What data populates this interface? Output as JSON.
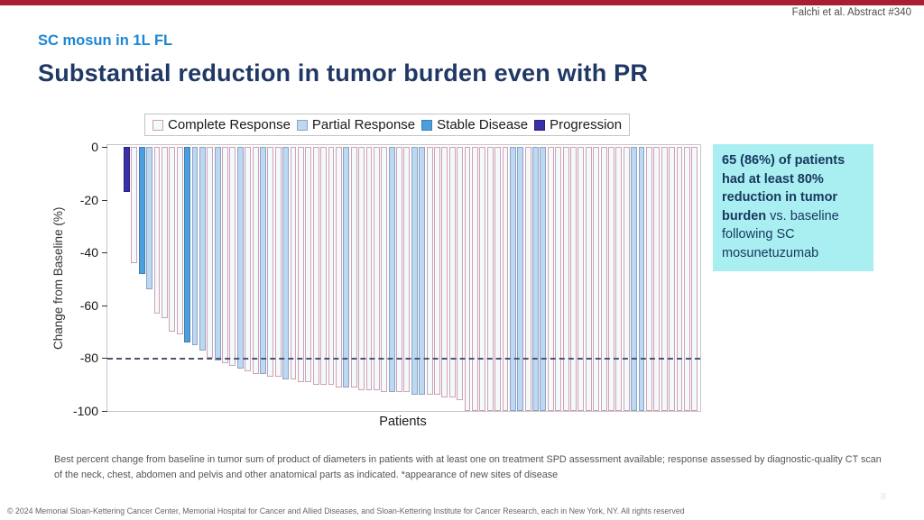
{
  "slide": {
    "attribution": "Falchi et al. Abstract #340",
    "kicker": "SC mosun in 1L FL",
    "title": "Substantial reduction in tumor burden even with PR",
    "accent_bar_color": "#A81E33",
    "page_number": "8"
  },
  "chart_data": {
    "type": "bar",
    "subtype": "waterfall",
    "title": "",
    "xlabel": "Patients",
    "ylabel": "Change from Baseline (%)",
    "ylim": [
      -100,
      0
    ],
    "yticks": [
      0,
      -20,
      -40,
      -60,
      -80,
      -100
    ],
    "reference_line": -80,
    "grid": false,
    "legend_position": "top",
    "legend": [
      {
        "key": "CR",
        "label": "Complete Response",
        "fill": "#F2FAFC",
        "border": "#D2A0B5"
      },
      {
        "key": "PR",
        "label": "Partial Response",
        "fill": "#BCD8F2",
        "border": "#8FA3C2"
      },
      {
        "key": "SD",
        "label": "Stable Disease",
        "fill": "#4D9EDC",
        "border": "#3F7FB5"
      },
      {
        "key": "PD",
        "label": "Progression",
        "fill": "#3B2FA9",
        "border": "#2A2080"
      }
    ],
    "values": [
      -17,
      -44,
      -48,
      -54,
      -63,
      -65,
      -70,
      -71,
      -74,
      -75,
      -77,
      -80,
      -81,
      -82,
      -83,
      -84,
      -85,
      -86,
      -86,
      -87,
      -87,
      -88,
      -88,
      -89,
      -89,
      -90,
      -90,
      -90,
      -91,
      -91,
      -91,
      -92,
      -92,
      -92,
      -93,
      -93,
      -93,
      -93,
      -94,
      -94,
      -94,
      -94,
      -95,
      -95,
      -96,
      -100,
      -100,
      -100,
      -100,
      -100,
      -100,
      -100,
      -100,
      -100,
      -100,
      -100,
      -100,
      -100,
      -100,
      -100,
      -100,
      -100,
      -100,
      -100,
      -100,
      -100,
      -100,
      -100,
      -100,
      -100,
      -100,
      -100,
      -100,
      -100,
      -100,
      -100
    ],
    "responses": [
      "PD",
      "CR",
      "SD",
      "PR",
      "CR",
      "CR",
      "CR",
      "CR",
      "SD",
      "PR",
      "PR",
      "CR",
      "PR",
      "CR",
      "CR",
      "PR",
      "CR",
      "CR",
      "PR",
      "CR",
      "CR",
      "PR",
      "CR",
      "CR",
      "CR",
      "CR",
      "CR",
      "CR",
      "CR",
      "PR",
      "CR",
      "CR",
      "CR",
      "CR",
      "CR",
      "PR",
      "CR",
      "CR",
      "PR",
      "PR",
      "CR",
      "CR",
      "CR",
      "CR",
      "CR",
      "CR",
      "CR",
      "CR",
      "CR",
      "CR",
      "CR",
      "PR",
      "PR",
      "CR",
      "PR",
      "PR",
      "CR",
      "CR",
      "CR",
      "CR",
      "CR",
      "CR",
      "CR",
      "CR",
      "CR",
      "CR",
      "CR",
      "PR",
      "PR",
      "CR",
      "CR",
      "CR",
      "CR",
      "CR",
      "CR",
      "CR"
    ]
  },
  "callout": {
    "bold_text": "65 (86%) of patients had at least 80% reduction in tumor burden",
    "regular_text": " vs. baseline following SC mosunetuzumab",
    "bg_color": "#A9EEF1"
  },
  "footnote": "Best percent change from baseline in tumor sum of product of diameters in patients with at least one on treatment SPD assessment available; response assessed by diagnostic-quality CT scan of the neck, chest, abdomen and pelvis and other anatomical parts as indicated. *appearance of new sites of disease",
  "copyright": "© 2024 Memorial Sloan-Kettering Cancer Center, Memorial Hospital for Cancer and Allied Diseases, and Sloan-Kettering Institute for Cancer Research, each in New York, NY. All rights reserved"
}
